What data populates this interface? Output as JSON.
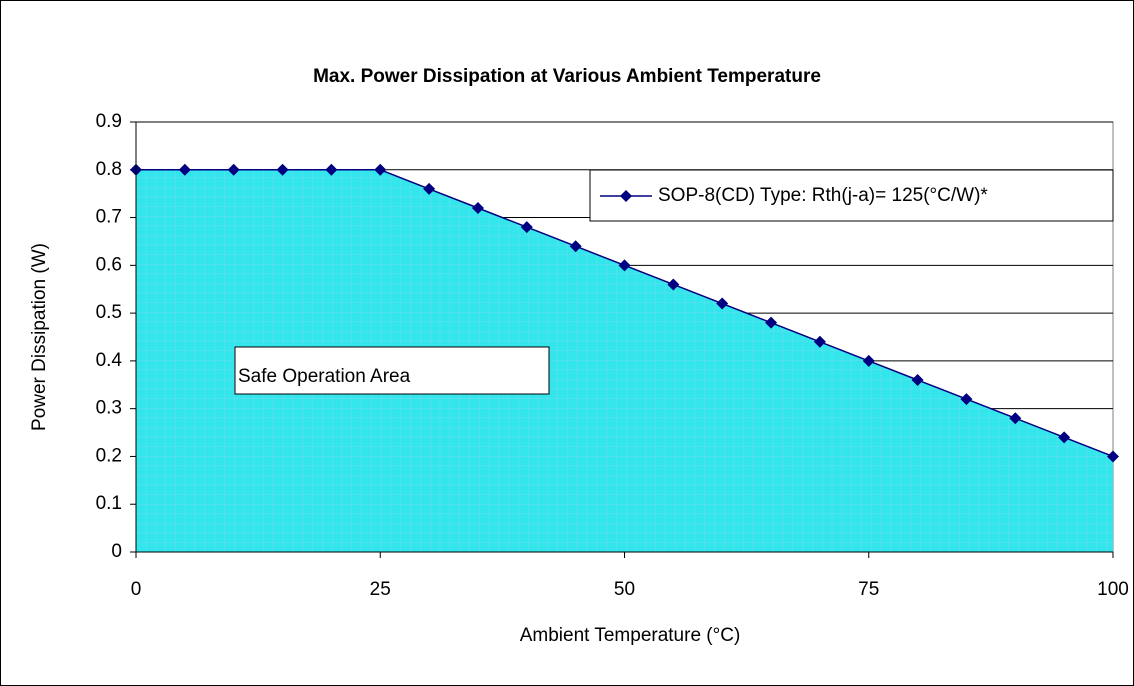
{
  "chart_data": {
    "type": "area",
    "title": "Max. Power Dissipation at Various Ambient Temperature",
    "x_label": "Ambient Temperature (°C)",
    "y_label": "Power Dissipation (W)",
    "annotations": [
      "Safe Operation Area"
    ],
    "x": [
      0,
      5,
      10,
      15,
      20,
      25,
      30,
      35,
      40,
      45,
      50,
      55,
      60,
      65,
      70,
      75,
      80,
      85,
      90,
      95,
      100
    ],
    "series": [
      {
        "name": "SOP-8(CD) Type: Rth(j-a)= 125(°C/W)*",
        "color": "#000080",
        "fill": "#33e6ec",
        "values": [
          0.8,
          0.8,
          0.8,
          0.8,
          0.8,
          0.8,
          0.76,
          0.72,
          0.68,
          0.64,
          0.6,
          0.56,
          0.52,
          0.48,
          0.44,
          0.4,
          0.36,
          0.32,
          0.28,
          0.24,
          0.2
        ]
      }
    ],
    "xlim": [
      0,
      100
    ],
    "xticks": [
      0,
      25,
      50,
      75,
      100
    ],
    "ylim": [
      0,
      0.9
    ],
    "yticks": [
      0,
      0.1,
      0.2,
      0.3,
      0.4,
      0.5,
      0.6,
      0.7,
      0.8,
      0.9
    ],
    "grid": true,
    "legend": "upper right"
  }
}
